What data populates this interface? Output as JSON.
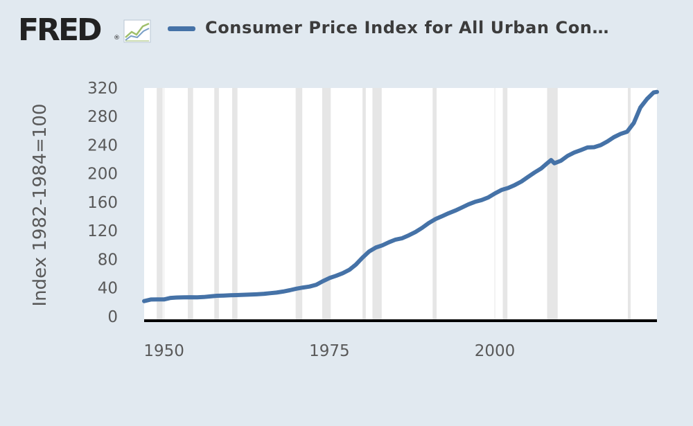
{
  "header": {
    "logo_text": "FRED",
    "logo_registered": "®",
    "logo_icon": "line-chart-icon"
  },
  "legend": {
    "label": "Consumer Price Index for All Urban Con…",
    "color": "#4572a7"
  },
  "colors": {
    "background": "#e1e9f0",
    "plot_background": "#ffffff",
    "recession_band": "#e6e6e6",
    "line": "#4572a7",
    "axis": "#000000"
  },
  "chart_data": {
    "type": "line",
    "title": "",
    "xlabel": "",
    "ylabel": "Index 1982-1984=100",
    "xlim": [
      1947.0,
      2024.5
    ],
    "ylim": [
      -6,
      320
    ],
    "y_ticks": [
      0,
      40,
      80,
      120,
      160,
      200,
      240,
      280,
      320
    ],
    "y_tick_labels": [
      "0",
      "40",
      "80",
      "120",
      "160",
      "200",
      "240",
      "280",
      "320"
    ],
    "x_ticks": [
      1950,
      1975,
      2000
    ],
    "x_tick_labels": [
      "1950",
      "1975",
      "2000"
    ],
    "grid": "vertical",
    "recessions": [
      [
        1948.9,
        1949.8
      ],
      [
        1953.6,
        1954.4
      ],
      [
        1957.6,
        1958.3
      ],
      [
        1960.3,
        1961.1
      ],
      [
        1969.9,
        1970.9
      ],
      [
        1973.9,
        1975.2
      ],
      [
        1980.0,
        1980.5
      ],
      [
        1981.5,
        1982.9
      ],
      [
        1990.6,
        1991.2
      ],
      [
        2001.2,
        2001.9
      ],
      [
        2007.9,
        2009.5
      ],
      [
        2020.1,
        2020.4
      ]
    ],
    "series": [
      {
        "values": [
          [
            1947.0,
            21.5
          ],
          [
            1948.0,
            23.7
          ],
          [
            1949.0,
            23.9
          ],
          [
            1950.0,
            23.8
          ],
          [
            1951.0,
            25.9
          ],
          [
            1952.0,
            26.5
          ],
          [
            1953.0,
            26.7
          ],
          [
            1954.0,
            26.9
          ],
          [
            1955.0,
            26.8
          ],
          [
            1956.0,
            27.2
          ],
          [
            1957.0,
            28.1
          ],
          [
            1958.0,
            28.9
          ],
          [
            1959.0,
            29.2
          ],
          [
            1960.0,
            29.6
          ],
          [
            1961.0,
            29.9
          ],
          [
            1962.0,
            30.3
          ],
          [
            1963.0,
            30.6
          ],
          [
            1964.0,
            31.0
          ],
          [
            1965.0,
            31.5
          ],
          [
            1966.0,
            32.5
          ],
          [
            1967.0,
            33.4
          ],
          [
            1968.0,
            34.8
          ],
          [
            1969.0,
            36.7
          ],
          [
            1970.0,
            38.8
          ],
          [
            1971.0,
            40.5
          ],
          [
            1972.0,
            41.8
          ],
          [
            1973.0,
            44.4
          ],
          [
            1974.0,
            49.3
          ],
          [
            1975.0,
            53.8
          ],
          [
            1976.0,
            56.9
          ],
          [
            1977.0,
            60.6
          ],
          [
            1978.0,
            65.2
          ],
          [
            1979.0,
            72.6
          ],
          [
            1980.0,
            82.4
          ],
          [
            1981.0,
            90.9
          ],
          [
            1982.0,
            96.5
          ],
          [
            1983.0,
            99.6
          ],
          [
            1984.0,
            103.9
          ],
          [
            1985.0,
            107.6
          ],
          [
            1986.0,
            109.6
          ],
          [
            1987.0,
            113.6
          ],
          [
            1988.0,
            118.3
          ],
          [
            1989.0,
            124.0
          ],
          [
            1990.0,
            130.7
          ],
          [
            1991.0,
            136.2
          ],
          [
            1992.0,
            140.3
          ],
          [
            1993.0,
            144.5
          ],
          [
            1994.0,
            148.2
          ],
          [
            1995.0,
            152.4
          ],
          [
            1996.0,
            156.9
          ],
          [
            1997.0,
            160.5
          ],
          [
            1998.0,
            163.0
          ],
          [
            1999.0,
            166.6
          ],
          [
            2000.0,
            172.2
          ],
          [
            2001.0,
            177.1
          ],
          [
            2002.0,
            179.9
          ],
          [
            2003.0,
            184.0
          ],
          [
            2004.0,
            188.9
          ],
          [
            2005.0,
            195.3
          ],
          [
            2006.0,
            201.6
          ],
          [
            2007.0,
            207.3
          ],
          [
            2008.0,
            215.3
          ],
          [
            2008.5,
            219.0
          ],
          [
            2009.0,
            214.5
          ],
          [
            2010.0,
            218.1
          ],
          [
            2011.0,
            224.9
          ],
          [
            2012.0,
            229.6
          ],
          [
            2013.0,
            233.0
          ],
          [
            2014.0,
            236.7
          ],
          [
            2015.0,
            237.0
          ],
          [
            2016.0,
            240.0
          ],
          [
            2017.0,
            245.1
          ],
          [
            2018.0,
            251.1
          ],
          [
            2019.0,
            255.7
          ],
          [
            2020.0,
            258.8
          ],
          [
            2021.0,
            271.0
          ],
          [
            2022.0,
            292.7
          ],
          [
            2023.0,
            304.7
          ],
          [
            2024.0,
            313.7
          ],
          [
            2024.5,
            314.5
          ]
        ]
      }
    ]
  }
}
